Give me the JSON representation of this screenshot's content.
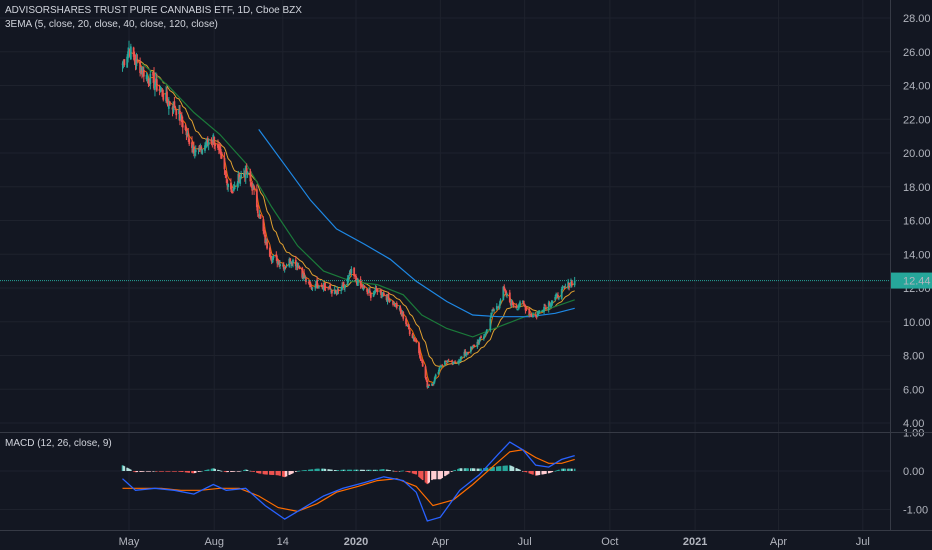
{
  "header": {
    "symbol_title": "ADVISORSHARES TRUST PURE CANNABIS ETF, 1D, Cboe BZX",
    "ema_title": "3EMA (5, close, 20, close, 40, close, 120, close)",
    "macd_title": "MACD (12, 26, close, 9)"
  },
  "colors": {
    "background": "#131722",
    "grid": "#1e222d",
    "up": "#26a69a",
    "down": "#ef5350",
    "ema5": "#ef6c00",
    "ema20": "#e0a030",
    "ema40": "#1b7a3a",
    "ema120": "#1e88e5",
    "macd_line": "#2962ff",
    "signal_line": "#ff6d00",
    "price_label_bg": "#26a69a"
  },
  "chart_data": [
    {
      "type": "candlestick",
      "series_name": "ADVISORSHARES TRUST PURE CANNABIS ETF",
      "x_ticks": [
        "May",
        "Aug",
        "14",
        "2020",
        "Apr",
        "Jul",
        "Oct",
        "2021",
        "Apr",
        "Jul"
      ],
      "y_ticks": [
        "28.00",
        "26.00",
        "24.00",
        "22.00",
        "20.00",
        "18.00",
        "16.00",
        "14.00",
        "12.00",
        "10.00",
        "8.00",
        "6.00",
        "4.00"
      ],
      "ylim": [
        4,
        28.4
      ],
      "last_price": "12.44",
      "close_path": [
        [
          "2019-04-24",
          25.3
        ],
        [
          "2019-05-01",
          26.2
        ],
        [
          "2019-05-08",
          25.4
        ],
        [
          "2019-05-15",
          25.0
        ],
        [
          "2019-05-22",
          24.4
        ],
        [
          "2019-05-29",
          24.1
        ],
        [
          "2019-06-05",
          23.6
        ],
        [
          "2019-06-12",
          23.0
        ],
        [
          "2019-06-19",
          22.8
        ],
        [
          "2019-06-26",
          22.0
        ],
        [
          "2019-07-03",
          21.0
        ],
        [
          "2019-07-10",
          20.3
        ],
        [
          "2019-07-17",
          20.1
        ],
        [
          "2019-07-24",
          20.6
        ],
        [
          "2019-07-31",
          20.9
        ],
        [
          "2019-08-07",
          19.8
        ],
        [
          "2019-08-14",
          18.5
        ],
        [
          "2019-08-21",
          17.7
        ],
        [
          "2019-08-28",
          18.6
        ],
        [
          "2019-09-04",
          18.9
        ],
        [
          "2019-09-11",
          18.0
        ],
        [
          "2019-09-18",
          16.5
        ],
        [
          "2019-09-25",
          14.8
        ],
        [
          "2019-10-02",
          13.8
        ],
        [
          "2019-10-09",
          13.6
        ],
        [
          "2019-10-16",
          13.3
        ],
        [
          "2019-10-23",
          13.7
        ],
        [
          "2019-10-30",
          13.4
        ],
        [
          "2019-11-06",
          12.6
        ],
        [
          "2019-11-13",
          12.0
        ],
        [
          "2019-11-20",
          12.3
        ],
        [
          "2019-11-27",
          12.1
        ],
        [
          "2019-12-04",
          11.9
        ],
        [
          "2019-12-11",
          11.7
        ],
        [
          "2019-12-18",
          12.0
        ],
        [
          "2019-12-27",
          12.9
        ],
        [
          "2020-01-03",
          12.3
        ],
        [
          "2020-01-10",
          11.9
        ],
        [
          "2020-01-17",
          11.6
        ],
        [
          "2020-01-24",
          11.9
        ],
        [
          "2020-01-31",
          11.6
        ],
        [
          "2020-02-07",
          11.3
        ],
        [
          "2020-02-14",
          10.9
        ],
        [
          "2020-02-21",
          10.3
        ],
        [
          "2020-02-28",
          9.4
        ],
        [
          "2020-03-06",
          8.8
        ],
        [
          "2020-03-12",
          7.6
        ],
        [
          "2020-03-18",
          6.2
        ],
        [
          "2020-03-24",
          6.4
        ],
        [
          "2020-04-01",
          7.4
        ],
        [
          "2020-04-08",
          7.7
        ],
        [
          "2020-04-15",
          7.5
        ],
        [
          "2020-04-22",
          7.8
        ],
        [
          "2020-04-29",
          8.2
        ],
        [
          "2020-05-06",
          8.5
        ],
        [
          "2020-05-13",
          8.9
        ],
        [
          "2020-05-20",
          9.3
        ],
        [
          "2020-05-27",
          10.6
        ],
        [
          "2020-06-03",
          11.0
        ],
        [
          "2020-06-08",
          11.9
        ],
        [
          "2020-06-15",
          11.2
        ],
        [
          "2020-06-22",
          10.9
        ],
        [
          "2020-06-29",
          11.1
        ],
        [
          "2020-07-06",
          10.5
        ],
        [
          "2020-07-13",
          10.3
        ],
        [
          "2020-07-20",
          10.8
        ],
        [
          "2020-07-27",
          11.1
        ],
        [
          "2020-08-03",
          11.4
        ],
        [
          "2020-08-10",
          11.8
        ],
        [
          "2020-08-17",
          12.2
        ],
        [
          "2020-08-24",
          12.44
        ]
      ],
      "ema_lines": [
        {
          "name": "EMA 40",
          "color_key": "ema40",
          "points": [
            [
              "2019-05-15",
              25.3
            ],
            [
              "2019-06-12",
              24.0
            ],
            [
              "2019-07-10",
              22.4
            ],
            [
              "2019-08-07",
              21.1
            ],
            [
              "2019-09-04",
              19.4
            ],
            [
              "2019-10-02",
              16.8
            ],
            [
              "2019-10-30",
              14.5
            ],
            [
              "2019-11-27",
              13.0
            ],
            [
              "2019-12-27",
              12.4
            ],
            [
              "2020-01-24",
              12.2
            ],
            [
              "2020-02-21",
              11.6
            ],
            [
              "2020-03-12",
              10.4
            ],
            [
              "2020-04-08",
              9.6
            ],
            [
              "2020-05-06",
              9.1
            ],
            [
              "2020-06-03",
              9.7
            ],
            [
              "2020-07-06",
              10.4
            ],
            [
              "2020-08-03",
              10.9
            ],
            [
              "2020-08-24",
              11.3
            ]
          ]
        },
        {
          "name": "EMA 120",
          "color_key": "ema120",
          "points": [
            [
              "2019-09-18",
              21.4
            ],
            [
              "2019-10-16",
              19.3
            ],
            [
              "2019-11-13",
              17.2
            ],
            [
              "2019-12-11",
              15.5
            ],
            [
              "2020-01-10",
              14.6
            ],
            [
              "2020-02-07",
              13.7
            ],
            [
              "2020-03-06",
              12.4
            ],
            [
              "2020-04-08",
              11.2
            ],
            [
              "2020-05-06",
              10.4
            ],
            [
              "2020-06-03",
              10.3
            ],
            [
              "2020-07-06",
              10.3
            ],
            [
              "2020-08-03",
              10.5
            ],
            [
              "2020-08-24",
              10.8
            ]
          ]
        }
      ]
    },
    {
      "type": "line",
      "series_name": "MACD",
      "y_ticks": [
        "1.00",
        "0.00",
        "-1.00"
      ],
      "ylim": [
        -1.6,
        1.0
      ],
      "macd": [
        [
          "2019-04-24",
          -0.2
        ],
        [
          "2019-05-08",
          -0.5
        ],
        [
          "2019-05-29",
          -0.45
        ],
        [
          "2019-06-19",
          -0.5
        ],
        [
          "2019-07-10",
          -0.6
        ],
        [
          "2019-07-31",
          -0.35
        ],
        [
          "2019-08-14",
          -0.5
        ],
        [
          "2019-09-04",
          -0.45
        ],
        [
          "2019-09-25",
          -0.9
        ],
        [
          "2019-10-16",
          -1.25
        ],
        [
          "2019-11-06",
          -0.95
        ],
        [
          "2019-11-27",
          -0.65
        ],
        [
          "2019-12-18",
          -0.45
        ],
        [
          "2020-01-10",
          -0.3
        ],
        [
          "2020-01-31",
          -0.15
        ],
        [
          "2020-02-21",
          -0.25
        ],
        [
          "2020-03-06",
          -0.55
        ],
        [
          "2020-03-18",
          -1.3
        ],
        [
          "2020-04-01",
          -1.2
        ],
        [
          "2020-04-22",
          -0.5
        ],
        [
          "2020-05-13",
          -0.1
        ],
        [
          "2020-06-03",
          0.45
        ],
        [
          "2020-06-15",
          0.75
        ],
        [
          "2020-06-29",
          0.55
        ],
        [
          "2020-07-13",
          0.15
        ],
        [
          "2020-07-27",
          0.1
        ],
        [
          "2020-08-10",
          0.3
        ],
        [
          "2020-08-24",
          0.4
        ]
      ],
      "signal": [
        [
          "2019-04-24",
          -0.45
        ],
        [
          "2019-05-15",
          -0.45
        ],
        [
          "2019-06-05",
          -0.45
        ],
        [
          "2019-06-26",
          -0.5
        ],
        [
          "2019-07-17",
          -0.5
        ],
        [
          "2019-08-07",
          -0.45
        ],
        [
          "2019-08-28",
          -0.45
        ],
        [
          "2019-09-18",
          -0.65
        ],
        [
          "2019-10-09",
          -0.95
        ],
        [
          "2019-10-30",
          -1.05
        ],
        [
          "2019-11-20",
          -0.85
        ],
        [
          "2019-12-11",
          -0.55
        ],
        [
          "2020-01-03",
          -0.4
        ],
        [
          "2020-01-24",
          -0.25
        ],
        [
          "2020-02-14",
          -0.2
        ],
        [
          "2020-03-06",
          -0.4
        ],
        [
          "2020-03-24",
          -0.9
        ],
        [
          "2020-04-15",
          -0.75
        ],
        [
          "2020-05-06",
          -0.35
        ],
        [
          "2020-05-27",
          0.1
        ],
        [
          "2020-06-15",
          0.5
        ],
        [
          "2020-06-29",
          0.55
        ],
        [
          "2020-07-13",
          0.35
        ],
        [
          "2020-07-27",
          0.2
        ],
        [
          "2020-08-10",
          0.2
        ],
        [
          "2020-08-24",
          0.3
        ]
      ]
    }
  ]
}
